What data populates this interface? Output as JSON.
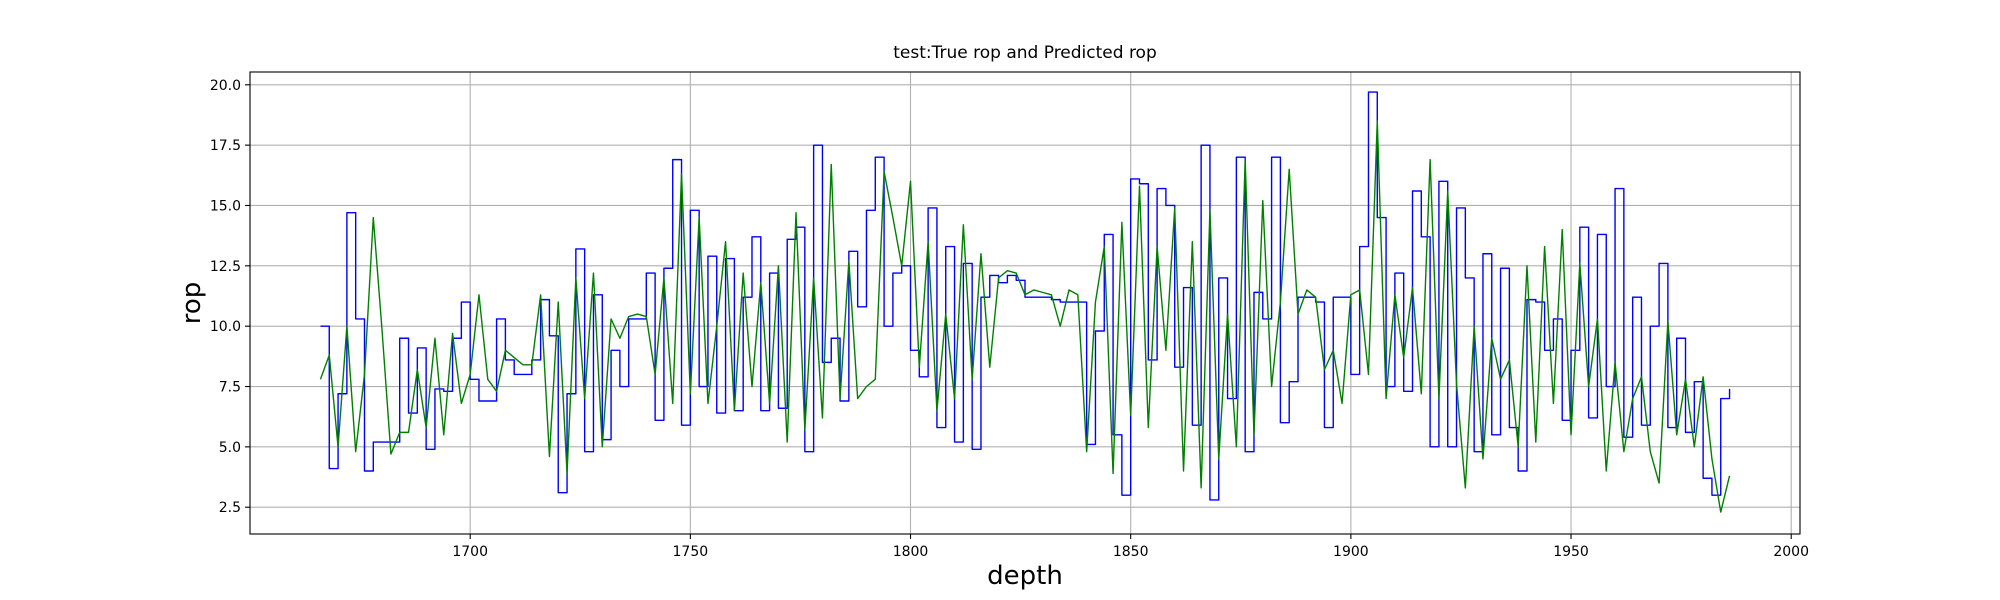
{
  "chart_data": {
    "type": "line",
    "title": "test:True rop and Predicted rop",
    "xlabel": "depth",
    "ylabel": "rop",
    "x": [
      1666,
      1668,
      1670,
      1672,
      1674,
      1676,
      1678,
      1680,
      1682,
      1684,
      1686,
      1688,
      1690,
      1692,
      1694,
      1696,
      1698,
      1700,
      1702,
      1704,
      1706,
      1708,
      1710,
      1712,
      1714,
      1716,
      1718,
      1720,
      1722,
      1724,
      1726,
      1728,
      1730,
      1732,
      1734,
      1736,
      1738,
      1740,
      1742,
      1744,
      1746,
      1748,
      1750,
      1752,
      1754,
      1756,
      1758,
      1760,
      1762,
      1764,
      1766,
      1768,
      1770,
      1772,
      1774,
      1776,
      1778,
      1780,
      1782,
      1784,
      1786,
      1788,
      1790,
      1792,
      1794,
      1796,
      1798,
      1800,
      1802,
      1804,
      1806,
      1808,
      1810,
      1812,
      1814,
      1816,
      1818,
      1820,
      1822,
      1824,
      1826,
      1828,
      1830,
      1832,
      1834,
      1836,
      1838,
      1840,
      1842,
      1844,
      1846,
      1848,
      1850,
      1852,
      1854,
      1856,
      1858,
      1860,
      1862,
      1864,
      1866,
      1868,
      1870,
      1872,
      1874,
      1876,
      1878,
      1880,
      1882,
      1884,
      1886,
      1888,
      1890,
      1892,
      1894,
      1896,
      1898,
      1900,
      1902,
      1904,
      1906,
      1908,
      1910,
      1912,
      1914,
      1916,
      1918,
      1920,
      1922,
      1924,
      1926,
      1928,
      1930,
      1932,
      1934,
      1936,
      1938,
      1940,
      1942,
      1944,
      1946,
      1948,
      1950,
      1952,
      1954,
      1956,
      1958,
      1960,
      1962,
      1964,
      1966,
      1968,
      1970,
      1972,
      1974,
      1976,
      1978,
      1980,
      1982,
      1984,
      1986
    ],
    "series": [
      {
        "color": "#0000ff",
        "drawstyle": "steps-post",
        "values": [
          10.0,
          4.1,
          7.2,
          14.7,
          10.3,
          4.0,
          5.2,
          5.2,
          5.2,
          9.5,
          6.4,
          9.1,
          4.9,
          7.4,
          7.3,
          9.5,
          11.0,
          7.8,
          6.9,
          6.9,
          10.3,
          8.6,
          8.0,
          8.0,
          8.6,
          11.1,
          9.6,
          3.1,
          7.2,
          13.2,
          4.8,
          11.3,
          5.3,
          9.0,
          7.5,
          10.3,
          10.3,
          12.2,
          6.1,
          12.4,
          16.9,
          5.9,
          14.8,
          7.5,
          12.9,
          6.4,
          12.8,
          6.5,
          11.2,
          13.7,
          6.5,
          12.2,
          6.6,
          13.6,
          14.1,
          4.8,
          17.5,
          8.5,
          9.5,
          6.9,
          13.1,
          10.8,
          14.8,
          17.0,
          10.0,
          12.2,
          12.5,
          9.0,
          7.9,
          14.9,
          5.8,
          13.3,
          5.2,
          12.6,
          4.9,
          11.2,
          12.1,
          11.8,
          12.1,
          11.9,
          11.2,
          11.2,
          11.2,
          11.1,
          11.0,
          11.0,
          11.0,
          5.1,
          9.8,
          13.8,
          5.5,
          3.0,
          16.1,
          15.9,
          8.6,
          15.7,
          15.0,
          8.3,
          11.6,
          5.9,
          17.5,
          2.8,
          12.0,
          7.0,
          17.0,
          4.8,
          11.4,
          10.3,
          17.0,
          6.0,
          7.7,
          11.2,
          11.2,
          11.0,
          5.8,
          11.2,
          11.2,
          8.0,
          13.3,
          19.7,
          14.5,
          7.5,
          12.2,
          7.3,
          15.6,
          13.7,
          5.0,
          16.0,
          5.0,
          14.9,
          12.0,
          4.8,
          13.0,
          5.5,
          12.4,
          5.8,
          4.0,
          11.1,
          11.0,
          9.0,
          10.3,
          6.1,
          9.0,
          14.1,
          6.2,
          13.8,
          7.5,
          15.7,
          5.4,
          11.2,
          5.9,
          10.0,
          12.6,
          5.8,
          9.5,
          5.6,
          7.7,
          3.7,
          3.0,
          7.0,
          7.4
        ]
      },
      {
        "color": "#008000",
        "drawstyle": "default",
        "values": [
          7.8,
          8.8,
          5.0,
          10.0,
          4.8,
          8.0,
          14.5,
          9.8,
          4.7,
          5.6,
          5.6,
          8.2,
          5.8,
          9.5,
          5.5,
          9.7,
          6.8,
          8.0,
          11.3,
          7.8,
          7.3,
          9.0,
          8.7,
          8.4,
          8.4,
          11.3,
          4.6,
          11.0,
          3.9,
          12.0,
          7.0,
          12.2,
          5.0,
          10.3,
          9.5,
          10.4,
          10.5,
          10.4,
          8.0,
          12.0,
          6.8,
          16.3,
          7.2,
          14.5,
          6.8,
          10.0,
          13.5,
          6.5,
          12.2,
          7.5,
          11.8,
          6.8,
          12.5,
          5.2,
          14.7,
          5.7,
          12.0,
          6.2,
          16.7,
          7.0,
          12.7,
          7.0,
          7.5,
          7.8,
          16.4,
          14.5,
          12.5,
          16.0,
          8.3,
          13.5,
          6.5,
          10.5,
          7.0,
          14.2,
          7.8,
          13.0,
          8.3,
          12.0,
          12.3,
          12.2,
          11.3,
          11.5,
          11.4,
          11.3,
          10.0,
          11.5,
          11.3,
          4.8,
          11.0,
          13.3,
          3.9,
          14.3,
          6.3,
          15.8,
          5.8,
          13.3,
          9.0,
          14.9,
          4.0,
          13.5,
          3.3,
          14.8,
          4.5,
          10.5,
          5.0,
          16.9,
          5.5,
          15.2,
          7.5,
          11.0,
          16.5,
          10.5,
          11.5,
          11.2,
          8.2,
          9.0,
          6.8,
          11.3,
          11.5,
          8.0,
          18.5,
          7.0,
          11.3,
          8.7,
          11.6,
          7.2,
          16.9,
          7.0,
          15.6,
          7.6,
          3.3,
          10.0,
          4.5,
          9.5,
          7.8,
          8.6,
          5.0,
          12.5,
          5.2,
          13.3,
          6.8,
          14.0,
          5.5,
          12.6,
          7.5,
          10.3,
          4.0,
          8.5,
          4.8,
          7.0,
          7.9,
          4.8,
          3.5,
          10.2,
          5.5,
          7.8,
          5.0,
          7.9,
          4.5,
          2.3,
          3.8
        ]
      }
    ],
    "xlim": [
      1650,
      2002
    ],
    "xticks": [
      1700,
      1750,
      1800,
      1850,
      1900,
      1950,
      2000
    ],
    "ylim": [
      1.39,
      20.53
    ],
    "yticks": [
      2.5,
      {
        "value": 5,
        "label": "5.0"
      },
      7.5,
      {
        "value": 10,
        "label": "10.0"
      },
      12.5,
      {
        "value": 15,
        "label": "15.0"
      },
      17.5,
      {
        "value": 20,
        "label": "20.0"
      }
    ],
    "grid": true
  }
}
